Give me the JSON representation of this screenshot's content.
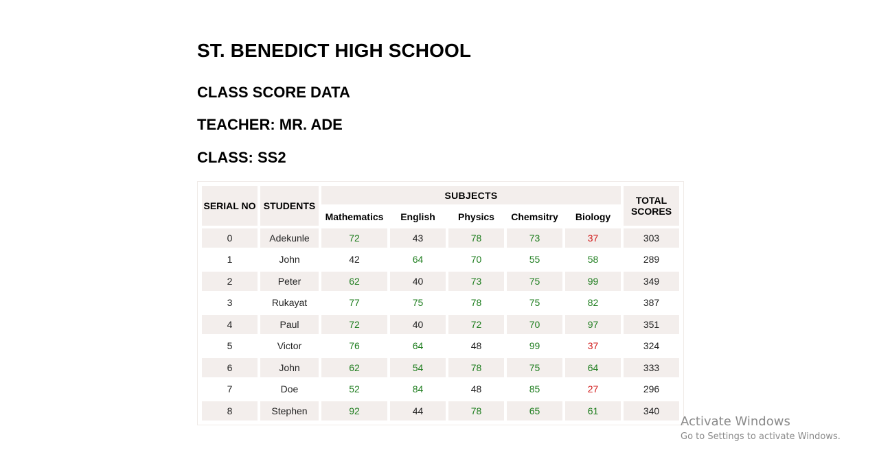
{
  "school_name": "ST. BENEDICT HIGH SCHOOL",
  "subtitle": "CLASS SCORE DATA",
  "teacher": "TEACHER: MR. ADE",
  "class_label": "CLASS: SS2",
  "table": {
    "headers": {
      "serial": "SERIAL NO",
      "students": "STUDENTS",
      "subjects": "SUBJECTS",
      "total": "TOTAL SCORES"
    },
    "subjects": [
      "Mathematics",
      "English",
      "Physics",
      "Chemsitry",
      "Biology"
    ],
    "rows": [
      {
        "serial": "0",
        "name": "Adekunle",
        "scores": [
          72,
          43,
          78,
          73,
          37
        ],
        "total": "303"
      },
      {
        "serial": "1",
        "name": "John",
        "scores": [
          42,
          64,
          70,
          55,
          58
        ],
        "total": "289"
      },
      {
        "serial": "2",
        "name": "Peter",
        "scores": [
          62,
          40,
          73,
          75,
          99
        ],
        "total": "349"
      },
      {
        "serial": "3",
        "name": "Rukayat",
        "scores": [
          77,
          75,
          78,
          75,
          82
        ],
        "total": "387"
      },
      {
        "serial": "4",
        "name": "Paul",
        "scores": [
          72,
          40,
          72,
          70,
          97
        ],
        "total": "351"
      },
      {
        "serial": "5",
        "name": "Victor",
        "scores": [
          76,
          64,
          48,
          99,
          37
        ],
        "total": "324"
      },
      {
        "serial": "6",
        "name": "John",
        "scores": [
          62,
          54,
          78,
          75,
          64
        ],
        "total": "333"
      },
      {
        "serial": "7",
        "name": "Doe",
        "scores": [
          52,
          84,
          48,
          85,
          27
        ],
        "total": "296"
      },
      {
        "serial": "8",
        "name": "Stephen",
        "scores": [
          92,
          44,
          78,
          65,
          61
        ],
        "total": "340"
      }
    ],
    "colors": {
      "pass": "#1e7d1e",
      "fail": "#d11a1a",
      "neutral": "#222222",
      "row_shade": "#f3eeec"
    }
  },
  "watermark": {
    "title": "Activate Windows",
    "subtitle": "Go to Settings to activate Windows."
  }
}
